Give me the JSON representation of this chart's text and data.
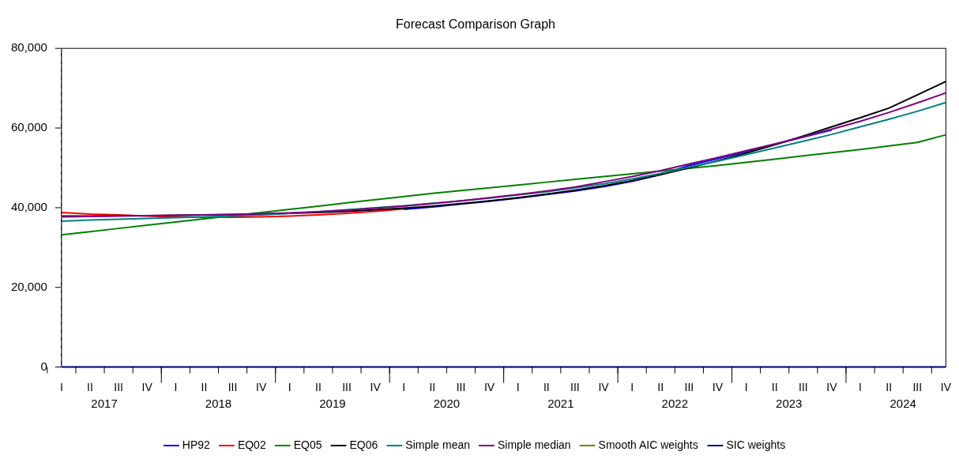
{
  "chart_data": {
    "type": "line",
    "title": "Forecast Comparison Graph",
    "categories": [
      "I",
      "II",
      "III",
      "IV",
      "I",
      "II",
      "III",
      "IV",
      "I",
      "II",
      "III",
      "IV",
      "I",
      "II",
      "III",
      "IV",
      "I",
      "II",
      "III",
      "IV",
      "I",
      "II",
      "III",
      "IV",
      "I",
      "II",
      "III",
      "IV",
      "I",
      "II",
      "III",
      "IV"
    ],
    "annotations": [
      "2017",
      "2018",
      "2019",
      "2020",
      "2021",
      "2022",
      "2023",
      "2024"
    ],
    "ylim": [
      0,
      80000
    ],
    "yticks": [
      {
        "value": 0,
        "label": "0"
      },
      {
        "value": 20000,
        "label": "20,000"
      },
      {
        "value": 40000,
        "label": "40,000"
      },
      {
        "value": 60000,
        "label": "60,000"
      },
      {
        "value": 80000,
        "label": "80,000"
      }
    ],
    "grid": false,
    "legend": "bottom",
    "line_style": "solid",
    "marker": "none",
    "ref_lines": [
      {
        "axis": "x",
        "value": "I",
        "color": "#808080",
        "line_style": "dashed"
      }
    ],
    "series": [
      {
        "name": "HP92",
        "color": "#0000ff",
        "values": [
          null,
          null,
          null,
          null,
          null,
          null,
          null,
          null,
          null,
          null,
          null,
          null,
          39600,
          40200,
          40900,
          41600,
          42400,
          43300,
          44200,
          45300,
          46600,
          48300,
          50600,
          52300,
          54100,
          55900,
          57700,
          59500,
          null,
          null,
          null,
          null
        ]
      },
      {
        "name": "EQ02",
        "color": "#ff0000",
        "values": [
          38800,
          38400,
          38200,
          37900,
          37700,
          37600,
          37600,
          37700,
          37900,
          38200,
          38600,
          39100,
          39700,
          null,
          null,
          null,
          null,
          null,
          null,
          null,
          null,
          null,
          null,
          null,
          null,
          null,
          null,
          null,
          null,
          null,
          null,
          null
        ]
      },
      {
        "name": "EQ05",
        "color": "#008000",
        "values": [
          33200,
          34000,
          34800,
          35600,
          36400,
          37200,
          38000,
          38800,
          39600,
          40400,
          41200,
          42000,
          42800,
          43600,
          44300,
          45000,
          45700,
          46400,
          47100,
          47800,
          48500,
          49200,
          49900,
          50600,
          51400,
          52200,
          53000,
          53800,
          54600,
          55500,
          56400,
          58300
        ]
      },
      {
        "name": "EQ06",
        "color": "#000000",
        "values": [
          37900,
          37900,
          38000,
          38000,
          38100,
          38200,
          38300,
          38400,
          38600,
          38800,
          39100,
          39500,
          39900,
          40400,
          41000,
          41700,
          42500,
          43400,
          44400,
          45500,
          46800,
          48300,
          50000,
          51800,
          53700,
          55800,
          58000,
          60300,
          62600,
          65000,
          68300,
          71700
        ]
      },
      {
        "name": "Simple mean",
        "color": "#008080",
        "values": [
          36600,
          36900,
          37100,
          37300,
          37500,
          37700,
          37900,
          38200,
          38600,
          39000,
          39500,
          40000,
          40500,
          41100,
          41700,
          42400,
          43200,
          44000,
          45000,
          46000,
          47200,
          48600,
          50200,
          51700,
          53300,
          55000,
          56700,
          58400,
          60300,
          62200,
          64200,
          66400
        ]
      },
      {
        "name": "Simple median",
        "color": "#800080",
        "values": [
          37700,
          37800,
          37900,
          38000,
          38100,
          38200,
          38300,
          38500,
          38700,
          39000,
          39400,
          39900,
          40400,
          41000,
          41700,
          42500,
          43300,
          44200,
          45200,
          46500,
          47800,
          49300,
          51000,
          52600,
          54300,
          56000,
          57800,
          59700,
          61700,
          63900,
          66300,
          68800
        ]
      },
      {
        "name": "Smooth AIC weights",
        "color": "#808000",
        "values": [
          null,
          null,
          null,
          null,
          null,
          null,
          null,
          null,
          null,
          null,
          null,
          null,
          null,
          null,
          null,
          null,
          null,
          null,
          null,
          null,
          null,
          null,
          null,
          null,
          null,
          null,
          null,
          null,
          null,
          null,
          null,
          null
        ]
      },
      {
        "name": "SIC weights",
        "color": "#000080",
        "values": [
          0,
          0,
          0,
          0,
          0,
          0,
          0,
          0,
          0,
          0,
          0,
          0,
          0,
          0,
          0,
          0,
          0,
          0,
          0,
          0,
          0,
          0,
          0,
          0,
          0,
          0,
          0,
          0,
          0,
          0,
          0,
          0
        ]
      }
    ]
  }
}
